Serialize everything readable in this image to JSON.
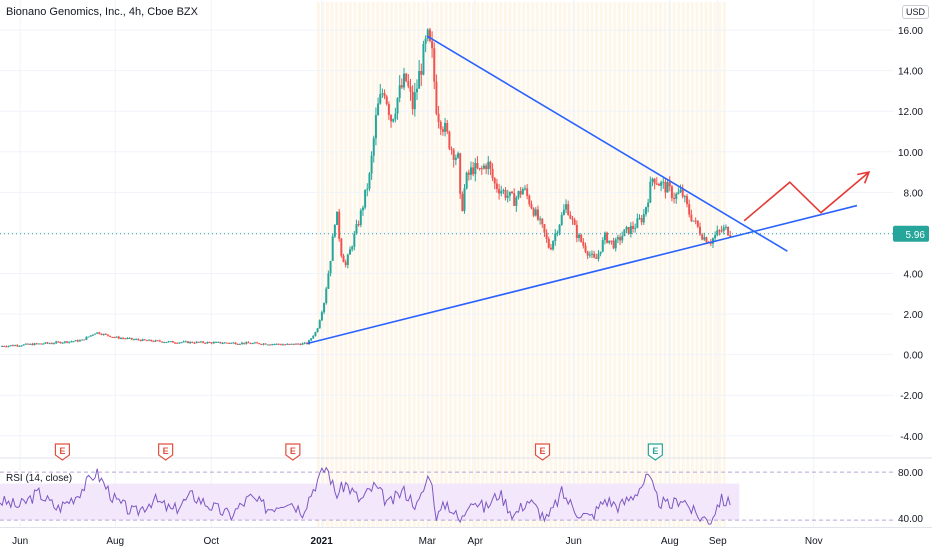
{
  "header": {
    "title": "Bionano Genomics, Inc., 4h, Cboe BZX",
    "currency": "USD"
  },
  "colors": {
    "up": "#26a69a",
    "down": "#ef5350",
    "trendline": "#2962ff",
    "projection": "#e53935",
    "rsi": "#7e57c2",
    "rsi_band": "#f3e8fb",
    "price_line": "#26a69a",
    "earnings_red": "#e0513f",
    "earnings_green": "#26a69a",
    "session_shade": "#fdf6e9"
  },
  "chart_data": {
    "type": "candlestick",
    "ylim": [
      -4.8,
      16.4
    ],
    "yticks": [
      "16.00",
      "14.00",
      "12.00",
      "10.00",
      "8.00",
      "6.00",
      "4.00",
      "2.00",
      "0.00",
      "-2.00",
      "-4.00"
    ],
    "xticks": [
      {
        "label": "Jun",
        "t": 0.42
      },
      {
        "label": "Aug",
        "t": 2.4
      },
      {
        "label": "Oct",
        "t": 4.4
      },
      {
        "label": "2021",
        "t": 6.7,
        "bold": true
      },
      {
        "label": "Mar",
        "t": 8.9
      },
      {
        "label": "Apr",
        "t": 9.9
      },
      {
        "label": "Jun",
        "t": 11.95
      },
      {
        "label": "Aug",
        "t": 13.95
      },
      {
        "label": "Sep",
        "t": 14.95
      },
      {
        "label": "Nov",
        "t": 16.95
      }
    ],
    "xlim": [
      0,
      18.6
    ],
    "last_price": "5.96",
    "price_path": [
      [
        0,
        0.42
      ],
      [
        0.6,
        0.5
      ],
      [
        1.2,
        0.6
      ],
      [
        1.7,
        0.7
      ],
      [
        2.0,
        1.1
      ],
      [
        2.4,
        0.85
      ],
      [
        3.0,
        0.7
      ],
      [
        3.6,
        0.62
      ],
      [
        4.2,
        0.6
      ],
      [
        4.8,
        0.58
      ],
      [
        5.4,
        0.55
      ],
      [
        6.0,
        0.5
      ],
      [
        6.4,
        0.55
      ],
      [
        6.6,
        1.2
      ],
      [
        6.75,
        2.6
      ],
      [
        6.9,
        5.0
      ],
      [
        7.0,
        7.2
      ],
      [
        7.1,
        5.1
      ],
      [
        7.2,
        4.4
      ],
      [
        7.3,
        5.2
      ],
      [
        7.5,
        6.8
      ],
      [
        7.7,
        8.8
      ],
      [
        7.85,
        12.0
      ],
      [
        8.0,
        13.2
      ],
      [
        8.15,
        11.6
      ],
      [
        8.3,
        12.8
      ],
      [
        8.45,
        13.6
      ],
      [
        8.6,
        12.2
      ],
      [
        8.75,
        14.0
      ],
      [
        8.9,
        15.6
      ],
      [
        9.0,
        14.7
      ],
      [
        9.1,
        12.0
      ],
      [
        9.25,
        11.2
      ],
      [
        9.4,
        10.2
      ],
      [
        9.55,
        9.6
      ],
      [
        9.6,
        6.8
      ],
      [
        9.7,
        8.6
      ],
      [
        9.85,
        9.2
      ],
      [
        10.0,
        9.0
      ],
      [
        10.15,
        9.5
      ],
      [
        10.3,
        8.4
      ],
      [
        10.5,
        8.0
      ],
      [
        10.7,
        7.6
      ],
      [
        10.9,
        8.2
      ],
      [
        11.1,
        7.2
      ],
      [
        11.3,
        6.2
      ],
      [
        11.45,
        5.2
      ],
      [
        11.6,
        6.2
      ],
      [
        11.8,
        7.4
      ],
      [
        12.0,
        6.0
      ],
      [
        12.2,
        5.2
      ],
      [
        12.4,
        4.6
      ],
      [
        12.6,
        5.8
      ],
      [
        12.8,
        5.4
      ],
      [
        13.0,
        6.0
      ],
      [
        13.2,
        6.3
      ],
      [
        13.4,
        6.8
      ],
      [
        13.6,
        8.8
      ],
      [
        13.75,
        8.4
      ],
      [
        13.9,
        8.2
      ],
      [
        14.05,
        7.8
      ],
      [
        14.2,
        8.0
      ],
      [
        14.35,
        7.0
      ],
      [
        14.5,
        6.4
      ],
      [
        14.65,
        5.8
      ],
      [
        14.8,
        5.6
      ],
      [
        14.95,
        6.0
      ],
      [
        15.1,
        6.2
      ],
      [
        15.25,
        5.96
      ]
    ],
    "trendlines": [
      {
        "from": [
          6.4,
          0.55
        ],
        "to": [
          17.85,
          7.35
        ]
      },
      {
        "from": [
          8.9,
          15.7
        ],
        "to": [
          16.4,
          5.1
        ]
      }
    ],
    "projection_path": [
      [
        15.5,
        6.6
      ],
      [
        16.45,
        8.5
      ],
      [
        17.1,
        7.0
      ],
      [
        18.1,
        9.0
      ]
    ],
    "rsi": {
      "label": "RSI (14, close)",
      "ylim": [
        32,
        88
      ],
      "yticks": [
        "80.00",
        "40.00"
      ],
      "band": [
        30,
        70
      ],
      "path": [
        [
          0,
          55
        ],
        [
          0.4,
          50
        ],
        [
          0.8,
          62
        ],
        [
          1.2,
          48
        ],
        [
          1.6,
          60
        ],
        [
          2.0,
          80
        ],
        [
          2.4,
          55
        ],
        [
          2.8,
          44
        ],
        [
          3.2,
          56
        ],
        [
          3.6,
          46
        ],
        [
          4.0,
          60
        ],
        [
          4.4,
          50
        ],
        [
          4.8,
          42
        ],
        [
          5.2,
          58
        ],
        [
          5.6,
          48
        ],
        [
          6.0,
          56
        ],
        [
          6.3,
          46
        ],
        [
          6.6,
          72
        ],
        [
          6.8,
          85
        ],
        [
          7.0,
          60
        ],
        [
          7.2,
          70
        ],
        [
          7.5,
          55
        ],
        [
          7.8,
          68
        ],
        [
          8.1,
          52
        ],
        [
          8.4,
          64
        ],
        [
          8.7,
          50
        ],
        [
          8.95,
          80
        ],
        [
          9.1,
          40
        ],
        [
          9.3,
          54
        ],
        [
          9.6,
          36
        ],
        [
          9.8,
          58
        ],
        [
          10.1,
          48
        ],
        [
          10.4,
          62
        ],
        [
          10.7,
          42
        ],
        [
          11.0,
          56
        ],
        [
          11.4,
          38
        ],
        [
          11.7,
          62
        ],
        [
          12.0,
          46
        ],
        [
          12.3,
          40
        ],
        [
          12.6,
          56
        ],
        [
          12.9,
          50
        ],
        [
          13.2,
          60
        ],
        [
          13.5,
          76
        ],
        [
          13.7,
          55
        ],
        [
          13.95,
          50
        ],
        [
          14.2,
          58
        ],
        [
          14.5,
          42
        ],
        [
          14.8,
          38
        ],
        [
          15.0,
          56
        ],
        [
          15.25,
          52
        ]
      ]
    },
    "earnings": [
      {
        "t": 1.3,
        "label": "E",
        "kind": "red"
      },
      {
        "t": 3.45,
        "label": "E",
        "kind": "red"
      },
      {
        "t": 6.1,
        "label": "E",
        "kind": "red"
      },
      {
        "t": 11.3,
        "label": "E",
        "kind": "red"
      },
      {
        "t": 13.65,
        "label": "E",
        "kind": "green"
      }
    ]
  }
}
